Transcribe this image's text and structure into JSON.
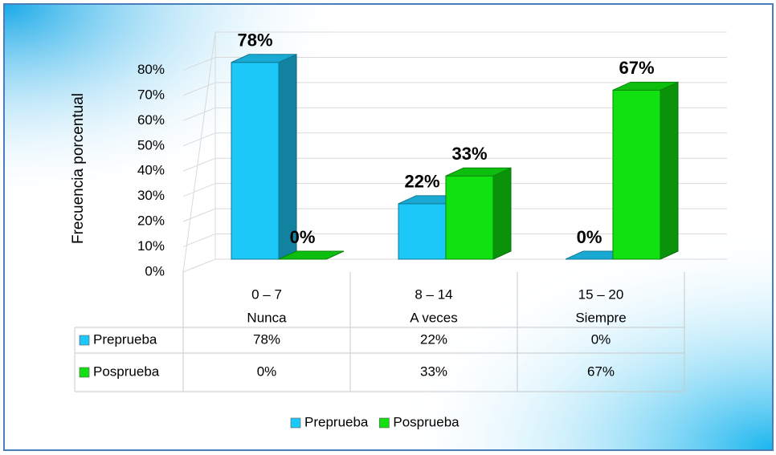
{
  "chart_data": {
    "type": "bar3d",
    "y_axis_label": "Frecuencia porcentual",
    "categories": [
      "0 – 7",
      "8 – 14",
      "15 – 20"
    ],
    "subcategories": [
      "Nunca",
      "A veces",
      "Siempre"
    ],
    "series": [
      {
        "name": "Preprueba",
        "color": "#1cc8f8",
        "values": [
          78,
          22,
          0
        ],
        "value_labels": [
          "78%",
          "22%",
          "0%"
        ]
      },
      {
        "name": "Posprueba",
        "color": "#11e011",
        "values": [
          0,
          33,
          67
        ],
        "value_labels": [
          "0%",
          "33%",
          "67%"
        ]
      }
    ],
    "ylim": [
      0,
      90
    ],
    "yticks": [
      {
        "value": 0,
        "label": "0%"
      },
      {
        "value": 10,
        "label": "10%"
      },
      {
        "value": 20,
        "label": "20%"
      },
      {
        "value": 30,
        "label": "30%"
      },
      {
        "value": 40,
        "label": "40%"
      },
      {
        "value": 50,
        "label": "50%"
      },
      {
        "value": 60,
        "label": "60%"
      },
      {
        "value": 70,
        "label": "70%"
      },
      {
        "value": 80,
        "label": "80%"
      }
    ],
    "grid": true,
    "legend": "bottom",
    "data_table": true
  }
}
